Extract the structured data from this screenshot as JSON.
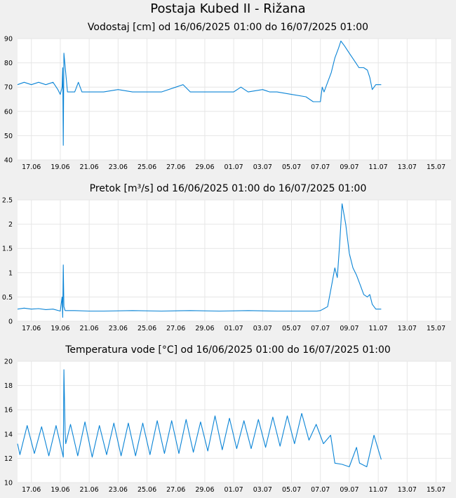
{
  "page_title": "Postaja Kubed II - Rižana",
  "chart_data": [
    {
      "type": "line",
      "title": "Vodostaj [cm] od 16/06/2025 01:00 do 16/07/2025 01:00",
      "ylim": [
        40,
        90
      ],
      "yticks": [
        40,
        50,
        60,
        70,
        80,
        90
      ],
      "xlim": [
        "2025-06-16T01:00",
        "2025-07-16T01:00"
      ],
      "xticks": [
        "17.06",
        "19.06",
        "21.06",
        "23.06",
        "25.06",
        "27.06",
        "29.06",
        "01.07",
        "03.07",
        "05.07",
        "07.07",
        "09.07",
        "11.07",
        "13.07",
        "15.07"
      ],
      "grid": true,
      "line_color": "#0a84d6",
      "series": [
        {
          "x": [
            "2025-06-16T01:00",
            "2025-06-16T12:00",
            "2025-06-17T00:00",
            "2025-06-17T12:00",
            "2025-06-18T00:00",
            "2025-06-18T12:00",
            "2025-06-18T20:00",
            "2025-06-19T00:00",
            "2025-06-19T03:00",
            "2025-06-19T04:00",
            "2025-06-19T05:00",
            "2025-06-19T06:00",
            "2025-06-19T12:00",
            "2025-06-20T00:00",
            "2025-06-20T06:00",
            "2025-06-20T12:00",
            "2025-06-21T00:00",
            "2025-06-22T00:00",
            "2025-06-23T00:00",
            "2025-06-24T00:00",
            "2025-06-25T00:00",
            "2025-06-26T00:00",
            "2025-06-27T00:00",
            "2025-06-27T12:00",
            "2025-06-28T00:00",
            "2025-06-29T00:00",
            "2025-06-30T00:00",
            "2025-07-01T00:00",
            "2025-07-01T12:00",
            "2025-07-02T00:00",
            "2025-07-03T00:00",
            "2025-07-03T12:00",
            "2025-07-04T00:00",
            "2025-07-05T00:00",
            "2025-07-06T00:00",
            "2025-07-06T12:00",
            "2025-07-07T00:00",
            "2025-07-07T03:00",
            "2025-07-07T06:00",
            "2025-07-07T12:00",
            "2025-07-07T18:00",
            "2025-07-08T00:00",
            "2025-07-08T06:00",
            "2025-07-08T10:00",
            "2025-07-08T16:00",
            "2025-07-09T00:00",
            "2025-07-09T08:00",
            "2025-07-09T16:00",
            "2025-07-10T00:00",
            "2025-07-10T06:00",
            "2025-07-10T10:00",
            "2025-07-10T14:00",
            "2025-07-10T20:00",
            "2025-07-11T00:00",
            "2025-07-11T05:00"
          ],
          "y": [
            71,
            72,
            71,
            72,
            71,
            72,
            69,
            67,
            70,
            78,
            46,
            84,
            68,
            68,
            72,
            68,
            68,
            68,
            69,
            68,
            68,
            68,
            70,
            71,
            68,
            68,
            68,
            68,
            70,
            68,
            69,
            68,
            68,
            67,
            66,
            64,
            64,
            70,
            68,
            72,
            76,
            82,
            86,
            89,
            87,
            84,
            81,
            78,
            78,
            77,
            74,
            69,
            71,
            71,
            71
          ]
        }
      ]
    },
    {
      "type": "line",
      "title": "Pretok [m³/s] od 16/06/2025 01:00 do 16/07/2025 01:00",
      "ylim": [
        0,
        2.5
      ],
      "yticks": [
        0,
        0.5,
        1,
        1.5,
        2,
        2.5
      ],
      "ytick_labels": [
        "0",
        "0.5",
        "1",
        "1.5",
        "2",
        "2.5"
      ],
      "xlim": [
        "2025-06-16T01:00",
        "2025-07-16T01:00"
      ],
      "xticks": [
        "17.06",
        "19.06",
        "21.06",
        "23.06",
        "25.06",
        "27.06",
        "29.06",
        "01.07",
        "03.07",
        "05.07",
        "07.07",
        "09.07",
        "11.07",
        "13.07",
        "15.07"
      ],
      "grid": true,
      "line_color": "#0a84d6",
      "series": [
        {
          "x": [
            "2025-06-16T01:00",
            "2025-06-16T12:00",
            "2025-06-17T00:00",
            "2025-06-17T12:00",
            "2025-06-18T00:00",
            "2025-06-18T12:00",
            "2025-06-19T00:00",
            "2025-06-19T03:00",
            "2025-06-19T04:00",
            "2025-06-19T05:00",
            "2025-06-19T06:00",
            "2025-06-19T08:00",
            "2025-06-19T12:00",
            "2025-06-20T00:00",
            "2025-06-21T00:00",
            "2025-06-22T00:00",
            "2025-06-24T00:00",
            "2025-06-26T00:00",
            "2025-06-28T00:00",
            "2025-06-30T00:00",
            "2025-07-02T00:00",
            "2025-07-04T00:00",
            "2025-07-06T00:00",
            "2025-07-06T18:00",
            "2025-07-07T00:00",
            "2025-07-07T06:00",
            "2025-07-07T12:00",
            "2025-07-07T18:00",
            "2025-07-08T00:00",
            "2025-07-08T04:00",
            "2025-07-08T08:00",
            "2025-07-08T12:00",
            "2025-07-08T18:00",
            "2025-07-09T00:00",
            "2025-07-09T06:00",
            "2025-07-09T12:00",
            "2025-07-09T18:00",
            "2025-07-10T00:00",
            "2025-07-10T06:00",
            "2025-07-10T10:00",
            "2025-07-10T14:00",
            "2025-07-10T20:00",
            "2025-07-11T05:00"
          ],
          "y": [
            0.25,
            0.27,
            0.25,
            0.26,
            0.24,
            0.25,
            0.21,
            0.5,
            0.08,
            1.16,
            0.3,
            0.22,
            0.22,
            0.22,
            0.21,
            0.21,
            0.22,
            0.21,
            0.22,
            0.21,
            0.22,
            0.21,
            0.21,
            0.21,
            0.22,
            0.26,
            0.3,
            0.7,
            1.1,
            0.9,
            1.6,
            2.42,
            2.0,
            1.4,
            1.1,
            0.95,
            0.75,
            0.55,
            0.5,
            0.55,
            0.35,
            0.25,
            0.25
          ]
        }
      ]
    },
    {
      "type": "line",
      "title": "Temperatura vode [°C] od 16/06/2025 01:00 do 16/07/2025 01:00",
      "ylim": [
        10,
        20
      ],
      "yticks": [
        10,
        12,
        14,
        16,
        18,
        20
      ],
      "xlim": [
        "2025-06-16T01:00",
        "2025-07-16T01:00"
      ],
      "xticks": [
        "17.06",
        "19.06",
        "21.06",
        "23.06",
        "25.06",
        "27.06",
        "29.06",
        "01.07",
        "03.07",
        "05.07",
        "07.07",
        "09.07",
        "11.07",
        "13.07",
        "15.07"
      ],
      "grid": true,
      "line_color": "#0a84d6",
      "series": [
        {
          "x": [
            "2025-06-16T01:00",
            "2025-06-16T05:00",
            "2025-06-16T17:00",
            "2025-06-17T05:00",
            "2025-06-17T17:00",
            "2025-06-18T05:00",
            "2025-06-18T17:00",
            "2025-06-19T05:00",
            "2025-06-19T06:00",
            "2025-06-19T08:00",
            "2025-06-19T09:00",
            "2025-06-19T17:00",
            "2025-06-20T05:00",
            "2025-06-20T17:00",
            "2025-06-21T05:00",
            "2025-06-21T17:00",
            "2025-06-22T05:00",
            "2025-06-22T17:00",
            "2025-06-23T05:00",
            "2025-06-23T17:00",
            "2025-06-24T05:00",
            "2025-06-24T17:00",
            "2025-06-25T05:00",
            "2025-06-25T17:00",
            "2025-06-26T05:00",
            "2025-06-26T17:00",
            "2025-06-27T05:00",
            "2025-06-27T17:00",
            "2025-06-28T05:00",
            "2025-06-28T17:00",
            "2025-06-29T05:00",
            "2025-06-29T17:00",
            "2025-06-30T05:00",
            "2025-06-30T17:00",
            "2025-07-01T05:00",
            "2025-07-01T17:00",
            "2025-07-02T05:00",
            "2025-07-02T17:00",
            "2025-07-03T05:00",
            "2025-07-03T17:00",
            "2025-07-04T05:00",
            "2025-07-04T17:00",
            "2025-07-05T05:00",
            "2025-07-05T17:00",
            "2025-07-06T05:00",
            "2025-07-06T17:00",
            "2025-07-07T05:00",
            "2025-07-07T17:00",
            "2025-07-08T00:00",
            "2025-07-08T12:00",
            "2025-07-09T00:00",
            "2025-07-09T12:00",
            "2025-07-09T17:00",
            "2025-07-10T05:00",
            "2025-07-10T17:00",
            "2025-07-11T05:00"
          ],
          "y": [
            13.2,
            12.3,
            14.7,
            12.4,
            14.6,
            12.2,
            14.7,
            12.1,
            19.3,
            14.2,
            13.2,
            14.8,
            12.2,
            15.0,
            12.1,
            14.7,
            12.3,
            14.9,
            12.2,
            14.9,
            12.2,
            14.9,
            12.3,
            15.1,
            12.4,
            15.1,
            12.4,
            15.2,
            12.5,
            15.0,
            12.6,
            15.5,
            12.7,
            15.3,
            12.8,
            15.1,
            12.8,
            15.2,
            12.9,
            15.4,
            13.0,
            15.5,
            13.2,
            15.7,
            13.5,
            14.8,
            13.2,
            13.9,
            11.6,
            11.5,
            11.3,
            12.9,
            11.6,
            11.3,
            13.9,
            11.9
          ]
        }
      ]
    }
  ]
}
